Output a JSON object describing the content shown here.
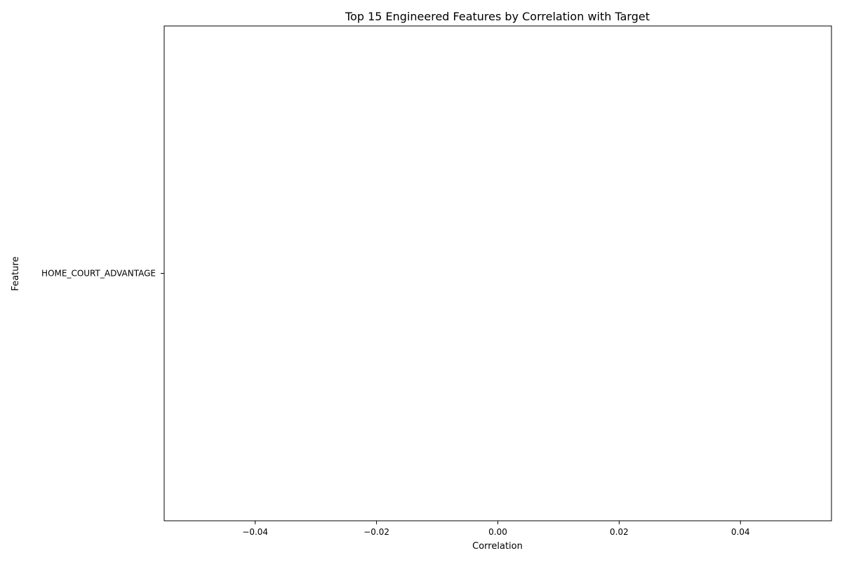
{
  "chart_data": {
    "type": "bar",
    "orientation": "horizontal",
    "title": "Top 15 Engineered Features by Correlation with Target",
    "xlabel": "Correlation",
    "ylabel": "Feature",
    "categories": [
      "HOME_COURT_ADVANTAGE"
    ],
    "values": [
      0.0
    ],
    "xlim": [
      -0.055,
      0.055
    ],
    "xticks": [
      -0.04,
      -0.02,
      0.0,
      0.02,
      0.04
    ],
    "xtick_labels": [
      "−0.04",
      "−0.02",
      "0.00",
      "0.02",
      "0.04"
    ],
    "grid": false,
    "legend": "none",
    "bar_color": "#1f77b4"
  }
}
